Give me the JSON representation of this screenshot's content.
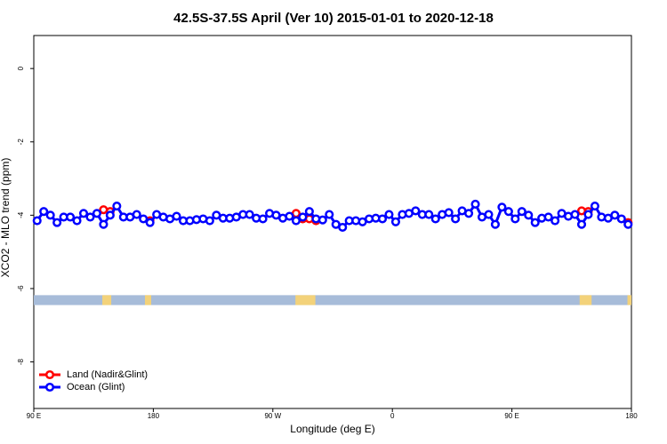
{
  "chart_data": {
    "type": "line",
    "title": "42.5S-37.5S April (Ver 10)   2015-01-01 to 2020-12-18",
    "x_label": "Longitude (deg E)",
    "y_label": "XCO2 - MLO trend (ppm)",
    "xlim": [
      90,
      540
    ],
    "xticks": [
      {
        "value": 90,
        "label": "90 E"
      },
      {
        "value": 180,
        "label": "180"
      },
      {
        "value": 270,
        "label": "90 W"
      },
      {
        "value": 360,
        "label": "0"
      },
      {
        "value": 450,
        "label": "90 E"
      },
      {
        "value": 540,
        "label": "180"
      }
    ],
    "ylim": [
      -9.27,
      0.9
    ],
    "yticks": [
      0,
      -2,
      -4,
      -6,
      -8
    ],
    "legend": "bottom-left",
    "surface_strip": {
      "color": "#a7bcd9",
      "land_color": "#f3d27a",
      "y_range": [
        -6.18,
        -6.45
      ],
      "land_ranges": [
        [
          141.6,
          148.3
        ],
        [
          173.7,
          178.4
        ],
        [
          287,
          302
        ],
        [
          501,
          510
        ],
        [
          537,
          540
        ]
      ]
    },
    "series": [
      {
        "name": "Land (Nadir&Glint)",
        "color": "#ff0000",
        "x": [
          142.5,
          147.5,
          152.5,
          177.5,
          182.5,
          287.5,
          292.5,
          297.5,
          302.5,
          307.5,
          502.5,
          507.5,
          512.5,
          537.5
        ],
        "values": [
          -3.85,
          -3.9,
          null,
          -4.15,
          null,
          -3.95,
          -4.1,
          -4.1,
          -4.15,
          null,
          -3.88,
          -3.9,
          null,
          -4.2
        ]
      },
      {
        "name": "Ocean (Glint)",
        "color": "#0000ff",
        "x": [
          92.5,
          97.5,
          102.5,
          107.5,
          112.5,
          117.5,
          122.5,
          127.5,
          132.5,
          137.5,
          142.5,
          147.5,
          152.5,
          157.5,
          162.5,
          167.5,
          172.5,
          177.5,
          182.5,
          187.5,
          192.5,
          197.5,
          202.5,
          207.5,
          212.5,
          217.5,
          222.5,
          227.5,
          232.5,
          237.5,
          242.5,
          247.5,
          252.5,
          257.5,
          262.5,
          267.5,
          272.5,
          277.5,
          282.5,
          287.5,
          292.5,
          297.5,
          302.5,
          307.5,
          312.5,
          317.5,
          322.5,
          327.5,
          332.5,
          337.5,
          342.5,
          347.5,
          352.5,
          357.5,
          362.5,
          367.5,
          372.5,
          377.5,
          382.5,
          387.5,
          392.5,
          397.5,
          402.5,
          407.5,
          412.5,
          417.5,
          422.5,
          427.5,
          432.5,
          437.5,
          442.5,
          447.5,
          452.5,
          457.5,
          462.5,
          467.5,
          472.5,
          477.5,
          482.5,
          487.5,
          492.5,
          497.5,
          502.5,
          507.5,
          512.5,
          517.5,
          522.5,
          527.5,
          532.5,
          537.5
        ],
        "values": [
          -4.15,
          -3.9,
          -4.0,
          -4.2,
          -4.05,
          -4.05,
          -4.15,
          -3.95,
          -4.05,
          -3.95,
          -4.25,
          -4.0,
          -3.75,
          -4.05,
          -4.05,
          -3.98,
          -4.1,
          -4.2,
          -3.98,
          -4.05,
          -4.1,
          -4.03,
          -4.15,
          -4.15,
          -4.12,
          -4.1,
          -4.15,
          -4.0,
          -4.08,
          -4.08,
          -4.05,
          -3.98,
          -3.98,
          -4.08,
          -4.1,
          -3.95,
          -4.0,
          -4.08,
          -4.03,
          -4.15,
          -4.05,
          -3.9,
          -4.1,
          -4.13,
          -3.98,
          -4.25,
          -4.33,
          -4.15,
          -4.15,
          -4.18,
          -4.1,
          -4.08,
          -4.1,
          -3.98,
          -4.18,
          -3.98,
          -3.95,
          -3.88,
          -3.98,
          -3.98,
          -4.1,
          -3.98,
          -3.93,
          -4.1,
          -3.88,
          -3.95,
          -3.7,
          -4.05,
          -3.98,
          -4.25,
          -3.78,
          -3.9,
          -4.1,
          -3.9,
          -4.0,
          -4.2,
          -4.08,
          -4.05,
          -4.15,
          -3.95,
          -4.03,
          -3.98,
          -4.25,
          -3.98,
          -3.75,
          -4.05,
          -4.08,
          -4.0,
          -4.1,
          -4.25
        ]
      }
    ]
  }
}
